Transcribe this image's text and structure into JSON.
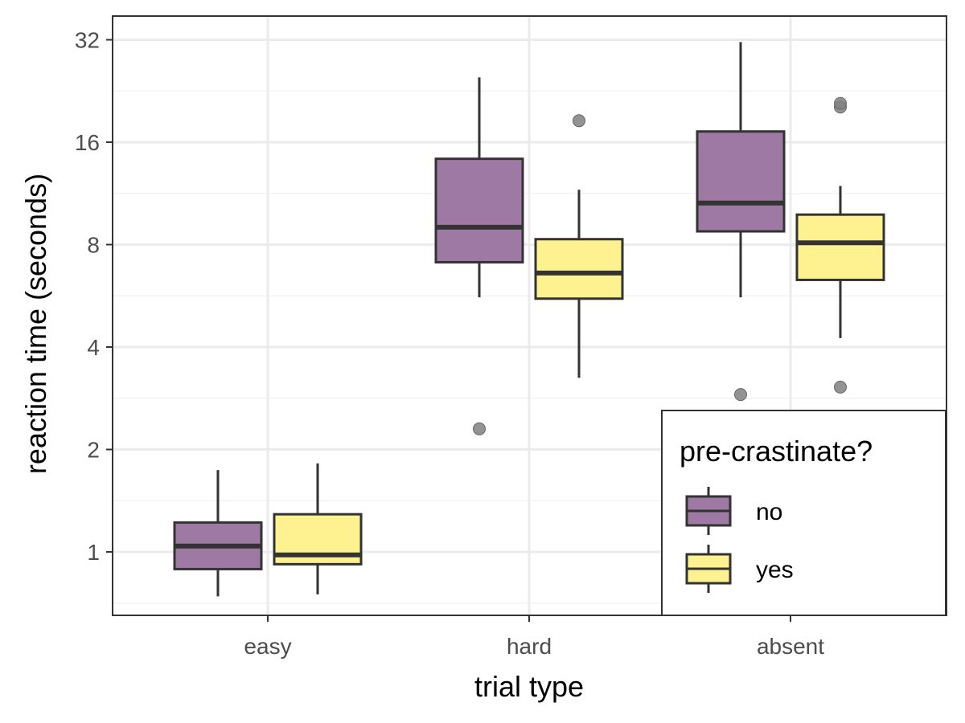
{
  "chart_data": {
    "type": "boxplot",
    "x_scale": "categorical",
    "y_scale": "log2",
    "categories": [
      "easy",
      "hard",
      "absent"
    ],
    "xlabel": "trial type",
    "ylabel": "reaction time (seconds)",
    "ylim": [
      0.7,
      36
    ],
    "y_ticks": [
      1,
      2,
      4,
      8,
      16,
      32
    ],
    "y_tick_labels": [
      "1",
      "2",
      "4",
      "8",
      "16",
      "32"
    ],
    "grid": true,
    "legend": {
      "title": "pre-crastinate?",
      "position": "bottom-right",
      "entries": [
        "no",
        "yes"
      ]
    },
    "series": [
      {
        "name": "no",
        "color": "#9d79a3",
        "boxes": [
          {
            "category": "easy",
            "whisker_low": 0.74,
            "q1": 0.89,
            "median": 1.04,
            "q3": 1.22,
            "whisker_high": 1.74,
            "outliers": []
          },
          {
            "category": "hard",
            "whisker_low": 5.6,
            "q1": 7.1,
            "median": 9.0,
            "q3": 14.3,
            "whisker_high": 24.8,
            "outliers": [
              2.3
            ]
          },
          {
            "category": "absent",
            "whisker_low": 5.6,
            "q1": 8.75,
            "median": 10.6,
            "q3": 17.2,
            "whisker_high": 31.5,
            "outliers": [
              2.9
            ]
          }
        ]
      },
      {
        "name": "yes",
        "color": "#fef18f",
        "boxes": [
          {
            "category": "easy",
            "whisker_low": 0.75,
            "q1": 0.92,
            "median": 0.98,
            "q3": 1.29,
            "whisker_high": 1.82,
            "outliers": []
          },
          {
            "category": "hard",
            "whisker_low": 3.25,
            "q1": 5.55,
            "median": 6.6,
            "q3": 8.3,
            "whisker_high": 11.6,
            "outliers": [
              18.5
            ]
          },
          {
            "category": "absent",
            "whisker_low": 4.25,
            "q1": 6.3,
            "median": 8.1,
            "q3": 9.8,
            "whisker_high": 11.9,
            "outliers": [
              3.05,
              20.3,
              20.8
            ]
          }
        ]
      }
    ]
  },
  "colors": {
    "outline": "#333333",
    "outlier": "#808080",
    "grid_major": "#ebebeb",
    "grid_minor": "#f3f3f3",
    "panel_border": "#333333"
  }
}
